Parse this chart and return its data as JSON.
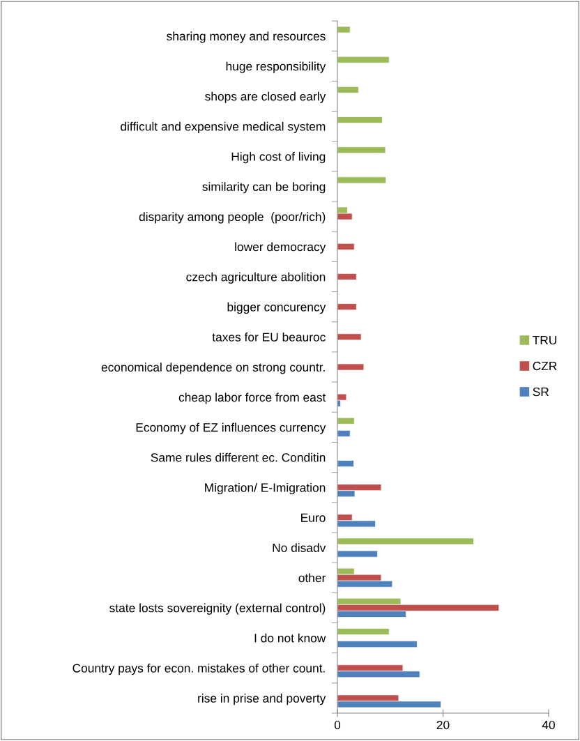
{
  "chart_data": {
    "type": "bar",
    "orientation": "horizontal",
    "categories": [
      "sharing money and resources",
      "huge responsibility",
      "shops are closed early",
      "difficult and expensive medical system",
      "High cost of living",
      "similarity can be boring",
      "disparity among people  (poor/rich)",
      "lower democracy",
      "czech agriculture abolition",
      "bigger concurency",
      "taxes for EU beauroc",
      "economical dependence on strong countr.",
      "cheap labor force from east",
      "Economy of EZ influences currency",
      "Same rules different ec. Conditin",
      "Migration/ E-Imigration",
      "Euro",
      "No disadv",
      "other",
      "state losts sovereignity (external control)",
      "I do not know",
      "Country pays for econ. mistakes of other count.",
      "rise in prise and poverty"
    ],
    "series": [
      {
        "name": "TRU",
        "color": "#9bbb59",
        "values": [
          2.4,
          9.8,
          4.0,
          8.5,
          9.1,
          9.2,
          1.9,
          null,
          null,
          null,
          null,
          null,
          null,
          3.2,
          null,
          null,
          null,
          25.8,
          3.2,
          12.0,
          9.8,
          null,
          null
        ]
      },
      {
        "name": "CZR",
        "color": "#c0504d",
        "values": [
          null,
          null,
          null,
          null,
          null,
          null,
          2.8,
          3.2,
          3.6,
          3.6,
          4.5,
          5.0,
          1.7,
          null,
          null,
          8.3,
          2.8,
          null,
          8.3,
          30.6,
          null,
          12.4,
          11.6
        ]
      },
      {
        "name": "SR",
        "color": "#4f81bd",
        "values": [
          null,
          null,
          null,
          null,
          null,
          null,
          null,
          null,
          null,
          null,
          null,
          null,
          0.6,
          2.4,
          3.1,
          3.3,
          7.2,
          7.6,
          10.4,
          13.0,
          15.1,
          15.6,
          19.6
        ]
      }
    ],
    "xlim": [
      0,
      40
    ],
    "xticks": [
      0,
      20,
      40
    ],
    "grid": false,
    "legend": "right"
  }
}
